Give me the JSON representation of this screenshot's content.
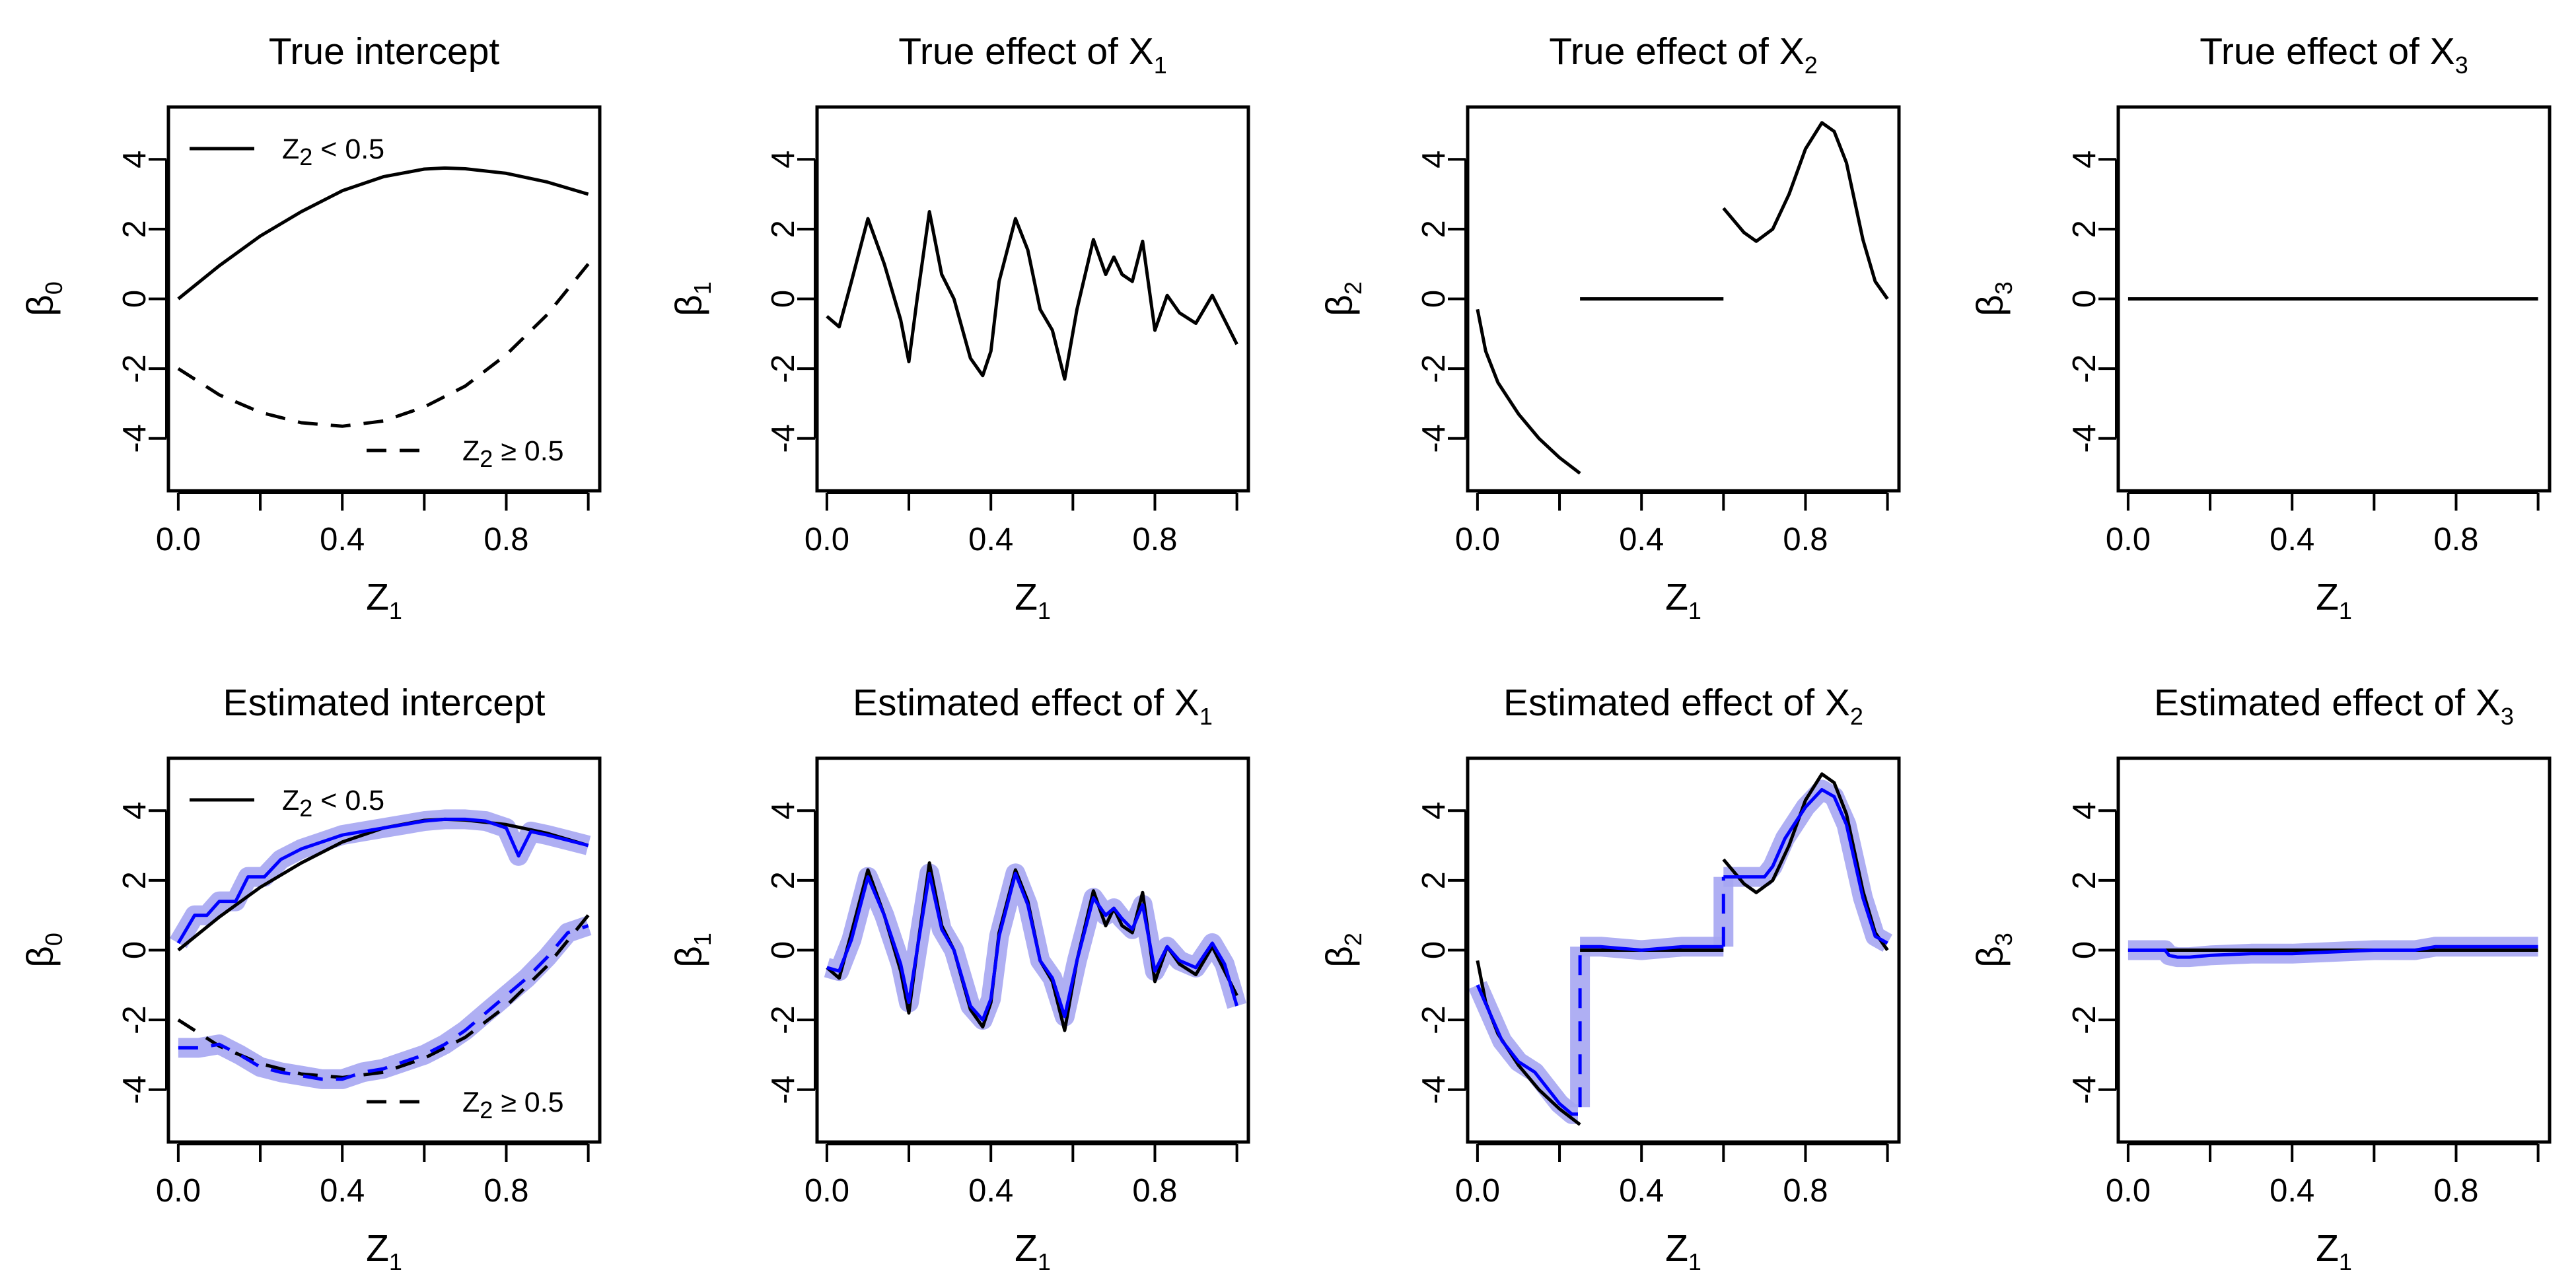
{
  "panels": [
    {
      "title_main": "True intercept",
      "title_sub": "",
      "ylabel_main": "β",
      "ylabel_sub": "0"
    },
    {
      "title_main": "True effect of X",
      "title_sub": "1",
      "ylabel_main": "β",
      "ylabel_sub": "1"
    },
    {
      "title_main": "True effect of X",
      "title_sub": "2",
      "ylabel_main": "β",
      "ylabel_sub": "2"
    },
    {
      "title_main": "True effect of X",
      "title_sub": "3",
      "ylabel_main": "β",
      "ylabel_sub": "3"
    },
    {
      "title_main": "Estimated intercept",
      "title_sub": "",
      "ylabel_main": "β",
      "ylabel_sub": "0"
    },
    {
      "title_main": "Estimated effect of X",
      "title_sub": "1",
      "ylabel_main": "β",
      "ylabel_sub": "1"
    },
    {
      "title_main": "Estimated effect of X",
      "title_sub": "2",
      "ylabel_main": "β",
      "ylabel_sub": "2"
    },
    {
      "title_main": "Estimated effect of X",
      "title_sub": "3",
      "ylabel_main": "β",
      "ylabel_sub": "3"
    }
  ],
  "xlabel": {
    "main": "Z",
    "sub": "1"
  },
  "xticks": [
    "0.0",
    "0.4",
    "0.8"
  ],
  "yticks": [
    "-4",
    "-2",
    "0",
    "2",
    "4"
  ],
  "legend": {
    "solid": {
      "main": "Z",
      "sub": "2",
      "rest": " < 0.5"
    },
    "dashed": {
      "main": "Z",
      "sub": "2",
      "rest": " ≥ 0.5"
    }
  },
  "colors": {
    "truth": "#000000",
    "estimate": "#0000ff",
    "band": "#a6a6f2"
  },
  "chart_data": [
    {
      "type": "line",
      "title": "True intercept",
      "xlabel": "Z1",
      "ylabel": "β0",
      "xlim": [
        0,
        1
      ],
      "ylim": [
        -5.5,
        5.5
      ],
      "grid": false,
      "legend": "top-left / bottom-right",
      "series": [
        {
          "name": "Z2 < 0.5",
          "style": "solid",
          "x": [
            0,
            0.1,
            0.2,
            0.3,
            0.4,
            0.5,
            0.6,
            0.65,
            0.7,
            0.8,
            0.9,
            1.0
          ],
          "y": [
            0,
            0.95,
            1.8,
            2.5,
            3.1,
            3.5,
            3.72,
            3.75,
            3.73,
            3.6,
            3.35,
            3.0
          ]
        },
        {
          "name": "Z2 ≥ 0.5",
          "style": "dashed",
          "x": [
            0,
            0.1,
            0.2,
            0.3,
            0.4,
            0.5,
            0.6,
            0.7,
            0.8,
            0.9,
            1.0
          ],
          "y": [
            -2,
            -2.75,
            -3.25,
            -3.55,
            -3.65,
            -3.5,
            -3.1,
            -2.5,
            -1.6,
            -0.45,
            1.0
          ]
        }
      ]
    },
    {
      "type": "line",
      "title": "True effect of X1",
      "xlabel": "Z1",
      "ylabel": "β1",
      "xlim": [
        0,
        1
      ],
      "ylim": [
        -5.5,
        5.5
      ],
      "grid": false,
      "series": [
        {
          "style": "solid",
          "x": [
            0,
            0.03,
            0.06,
            0.1,
            0.14,
            0.18,
            0.2,
            0.22,
            0.25,
            0.28,
            0.31,
            0.35,
            0.38,
            0.4,
            0.42,
            0.46,
            0.49,
            0.52,
            0.55,
            0.58,
            0.61,
            0.65,
            0.68,
            0.7,
            0.72,
            0.745,
            0.77,
            0.8,
            0.83,
            0.86,
            0.9,
            0.94,
            0.97,
            1.0
          ],
          "y": [
            -0.5,
            -0.8,
            0.5,
            2.3,
            1.0,
            -0.6,
            -1.8,
            0,
            2.5,
            0.7,
            0,
            -1.7,
            -2.2,
            -1.5,
            0.5,
            2.3,
            1.4,
            -0.3,
            -0.9,
            -2.3,
            -0.3,
            1.7,
            0.7,
            1.2,
            0.7,
            0.5,
            1.65,
            -0.9,
            0.1,
            -0.4,
            -0.7,
            0.1,
            -0.6,
            -1.3
          ]
        }
      ]
    },
    {
      "type": "line",
      "title": "True effect of X2",
      "xlabel": "Z1",
      "ylabel": "β2",
      "xlim": [
        0,
        1
      ],
      "ylim": [
        -5.5,
        5.5
      ],
      "grid": false,
      "series": [
        {
          "style": "solid",
          "x": [
            0,
            0.02,
            0.05,
            0.1,
            0.15,
            0.2,
            0.25
          ],
          "y": [
            -0.3,
            -1.5,
            -2.4,
            -3.3,
            -4.0,
            -4.55,
            -5.0
          ]
        },
        {
          "style": "solid",
          "x": [
            0.25,
            0.6
          ],
          "y": [
            0,
            0
          ]
        },
        {
          "style": "solid",
          "x": [
            0.6,
            0.65,
            0.68,
            0.72,
            0.76,
            0.8,
            0.84,
            0.87,
            0.9,
            0.94,
            0.97,
            1.0
          ],
          "y": [
            2.6,
            1.9,
            1.65,
            2.0,
            3.0,
            4.3,
            5.05,
            4.8,
            3.9,
            1.7,
            0.5,
            0
          ]
        }
      ]
    },
    {
      "type": "line",
      "title": "True effect of X3",
      "xlabel": "Z1",
      "ylabel": "β3",
      "xlim": [
        0,
        1
      ],
      "ylim": [
        -5.5,
        5.5
      ],
      "grid": false,
      "series": [
        {
          "style": "solid",
          "x": [
            0,
            1
          ],
          "y": [
            0,
            0
          ]
        }
      ]
    },
    {
      "type": "line",
      "title": "Estimated intercept",
      "xlabel": "Z1",
      "ylabel": "β0",
      "xlim": [
        0,
        1
      ],
      "ylim": [
        -5.5,
        5.5
      ],
      "grid": false,
      "series": [
        {
          "name": "Z2 < 0.5",
          "style": "solid",
          "role": "truth",
          "x": [
            0,
            0.1,
            0.2,
            0.3,
            0.4,
            0.5,
            0.6,
            0.65,
            0.7,
            0.8,
            0.9,
            1.0
          ],
          "y": [
            0,
            0.95,
            1.8,
            2.5,
            3.1,
            3.5,
            3.72,
            3.75,
            3.73,
            3.6,
            3.35,
            3.0
          ]
        },
        {
          "name": "Z2 ≥ 0.5",
          "style": "dashed",
          "role": "truth",
          "x": [
            0,
            0.1,
            0.2,
            0.3,
            0.4,
            0.5,
            0.6,
            0.7,
            0.8,
            0.9,
            1.0
          ],
          "y": [
            -2,
            -2.75,
            -3.25,
            -3.55,
            -3.65,
            -3.5,
            -3.1,
            -2.5,
            -1.6,
            -0.45,
            1.0
          ]
        },
        {
          "style": "solid",
          "role": "estimate",
          "x": [
            0,
            0.04,
            0.07,
            0.1,
            0.14,
            0.17,
            0.21,
            0.25,
            0.3,
            0.35,
            0.4,
            0.45,
            0.5,
            0.55,
            0.6,
            0.65,
            0.7,
            0.75,
            0.8,
            0.83,
            0.86,
            0.9,
            0.95,
            1.0
          ],
          "y": [
            0.2,
            1.0,
            1.0,
            1.4,
            1.4,
            2.1,
            2.1,
            2.6,
            2.9,
            3.1,
            3.3,
            3.4,
            3.5,
            3.6,
            3.7,
            3.75,
            3.75,
            3.7,
            3.5,
            2.7,
            3.4,
            3.3,
            3.15,
            3.0
          ]
        },
        {
          "style": "dashed",
          "role": "estimate",
          "x": [
            0,
            0.05,
            0.1,
            0.15,
            0.2,
            0.25,
            0.3,
            0.35,
            0.4,
            0.45,
            0.5,
            0.55,
            0.6,
            0.65,
            0.7,
            0.75,
            0.8,
            0.85,
            0.9,
            0.95,
            1.0
          ],
          "y": [
            -2.8,
            -2.8,
            -2.7,
            -3.0,
            -3.35,
            -3.5,
            -3.6,
            -3.7,
            -3.7,
            -3.5,
            -3.4,
            -3.2,
            -3.0,
            -2.7,
            -2.3,
            -1.8,
            -1.3,
            -0.8,
            -0.2,
            0.5,
            0.7
          ]
        }
      ]
    },
    {
      "type": "line",
      "title": "Estimated effect of X1",
      "xlabel": "Z1",
      "ylabel": "β1",
      "xlim": [
        0,
        1
      ],
      "ylim": [
        -5.5,
        5.5
      ],
      "grid": false,
      "series": [
        {
          "style": "solid",
          "role": "truth",
          "x": [
            0,
            0.03,
            0.06,
            0.1,
            0.14,
            0.18,
            0.2,
            0.22,
            0.25,
            0.28,
            0.31,
            0.35,
            0.38,
            0.4,
            0.42,
            0.46,
            0.49,
            0.52,
            0.55,
            0.58,
            0.61,
            0.65,
            0.68,
            0.7,
            0.72,
            0.745,
            0.77,
            0.8,
            0.83,
            0.86,
            0.9,
            0.94,
            0.97,
            1.0
          ],
          "y": [
            -0.5,
            -0.8,
            0.5,
            2.3,
            1.0,
            -0.6,
            -1.8,
            0,
            2.5,
            0.7,
            0,
            -1.7,
            -2.2,
            -1.5,
            0.5,
            2.3,
            1.4,
            -0.3,
            -0.9,
            -2.3,
            -0.3,
            1.7,
            0.7,
            1.2,
            0.7,
            0.5,
            1.65,
            -0.9,
            0.1,
            -0.4,
            -0.7,
            0.1,
            -0.6,
            -1.3
          ]
        },
        {
          "style": "solid",
          "role": "estimate",
          "x": [
            0,
            0.03,
            0.06,
            0.1,
            0.14,
            0.18,
            0.2,
            0.22,
            0.25,
            0.28,
            0.31,
            0.35,
            0.38,
            0.4,
            0.42,
            0.46,
            0.49,
            0.52,
            0.55,
            0.58,
            0.61,
            0.65,
            0.68,
            0.7,
            0.72,
            0.745,
            0.77,
            0.8,
            0.83,
            0.86,
            0.9,
            0.94,
            0.97,
            1.0
          ],
          "y": [
            -0.5,
            -0.6,
            0.3,
            2.1,
            1.0,
            -0.4,
            -1.5,
            0,
            2.2,
            0.6,
            0,
            -1.6,
            -2.0,
            -1.4,
            0.4,
            2.2,
            1.3,
            -0.3,
            -0.8,
            -1.9,
            -0.3,
            1.5,
            1.0,
            1.2,
            0.9,
            0.6,
            1.3,
            -0.6,
            0.1,
            -0.3,
            -0.5,
            0.2,
            -0.4,
            -1.6
          ]
        }
      ]
    },
    {
      "type": "line",
      "title": "Estimated effect of X2",
      "xlabel": "Z1",
      "ylabel": "β2",
      "xlim": [
        0,
        1
      ],
      "ylim": [
        -5.5,
        5.5
      ],
      "grid": false,
      "series": [
        {
          "style": "solid",
          "role": "truth",
          "x": [
            0,
            0.02,
            0.05,
            0.1,
            0.15,
            0.2,
            0.25
          ],
          "y": [
            -0.3,
            -1.5,
            -2.4,
            -3.3,
            -4.0,
            -4.55,
            -5.0
          ]
        },
        {
          "style": "solid",
          "role": "truth",
          "x": [
            0.25,
            0.6
          ],
          "y": [
            0,
            0
          ]
        },
        {
          "style": "solid",
          "role": "truth",
          "x": [
            0.6,
            0.65,
            0.68,
            0.72,
            0.76,
            0.8,
            0.84,
            0.87,
            0.9,
            0.94,
            0.97,
            1.0
          ],
          "y": [
            2.6,
            1.9,
            1.65,
            2.0,
            3.0,
            4.3,
            5.05,
            4.8,
            3.9,
            1.7,
            0.5,
            0
          ]
        },
        {
          "style": "solid",
          "role": "estimate",
          "x": [
            0,
            0.03,
            0.06,
            0.1,
            0.14,
            0.18,
            0.2,
            0.23,
            0.245
          ],
          "y": [
            -1.0,
            -1.8,
            -2.6,
            -3.2,
            -3.5,
            -4.1,
            -4.4,
            -4.7,
            -4.7
          ]
        },
        {
          "style": "dashed",
          "role": "estimate",
          "x": [
            0.25,
            0.25
          ],
          "y": [
            -4.5,
            0.1
          ]
        },
        {
          "style": "solid",
          "role": "estimate",
          "x": [
            0.25,
            0.3,
            0.4,
            0.5,
            0.6
          ],
          "y": [
            0.1,
            0.1,
            0.0,
            0.1,
            0.1
          ]
        },
        {
          "style": "dashed",
          "role": "estimate",
          "x": [
            0.6,
            0.6
          ],
          "y": [
            0.1,
            2.1
          ]
        },
        {
          "style": "solid",
          "role": "estimate",
          "x": [
            0.6,
            0.65,
            0.7,
            0.72,
            0.75,
            0.8,
            0.84,
            0.87,
            0.9,
            0.94,
            0.97,
            1.0
          ],
          "y": [
            2.1,
            2.1,
            2.1,
            2.4,
            3.2,
            4.1,
            4.6,
            4.4,
            3.6,
            1.5,
            0.4,
            0.2
          ]
        }
      ]
    },
    {
      "type": "line",
      "title": "Estimated effect of X3",
      "xlabel": "Z1",
      "ylabel": "β3",
      "xlim": [
        0,
        1
      ],
      "ylim": [
        -5.5,
        5.5
      ],
      "grid": false,
      "series": [
        {
          "style": "solid",
          "role": "truth",
          "x": [
            0,
            1
          ],
          "y": [
            0,
            0
          ]
        },
        {
          "style": "solid",
          "role": "estimate",
          "x": [
            0,
            0.05,
            0.09,
            0.1,
            0.12,
            0.15,
            0.2,
            0.3,
            0.4,
            0.5,
            0.6,
            0.7,
            0.75,
            0.8,
            0.9,
            1.0
          ],
          "y": [
            0,
            0,
            0,
            -0.15,
            -0.2,
            -0.2,
            -0.15,
            -0.1,
            -0.1,
            -0.05,
            0,
            0,
            0.1,
            0.1,
            0.1,
            0.1
          ]
        }
      ]
    }
  ]
}
